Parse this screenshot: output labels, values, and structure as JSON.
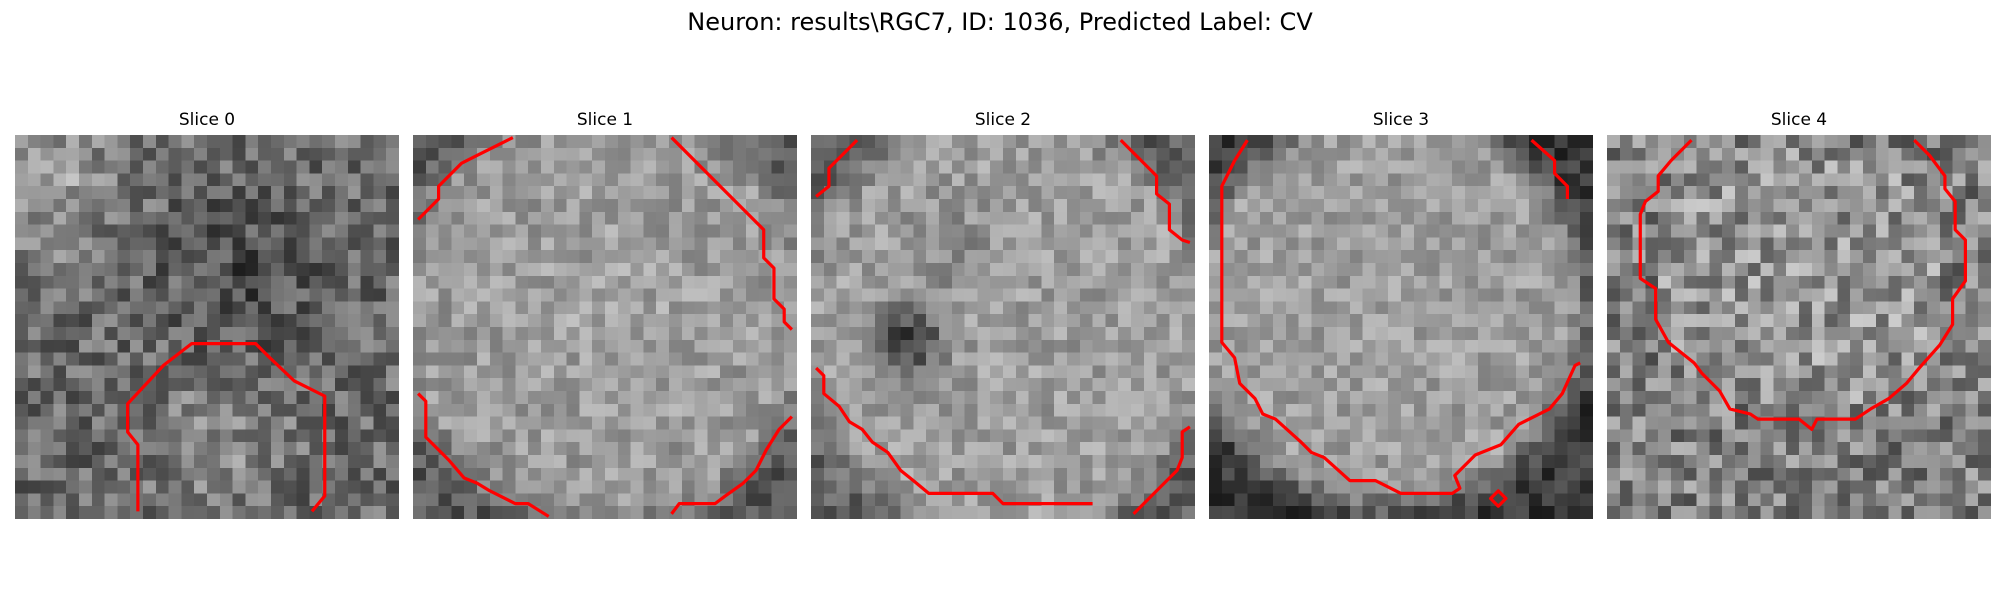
{
  "figure": {
    "title": "Neuron: results\\RGC7, ID: 1036, Predicted Label: CV"
  },
  "slices": [
    {
      "title": "Slice 0"
    },
    {
      "title": "Slice 1"
    },
    {
      "title": "Slice 2"
    },
    {
      "title": "Slice 3"
    },
    {
      "title": "Slice 4"
    }
  ],
  "colors": {
    "contour": "#ff0000",
    "background": "#ffffff"
  }
}
